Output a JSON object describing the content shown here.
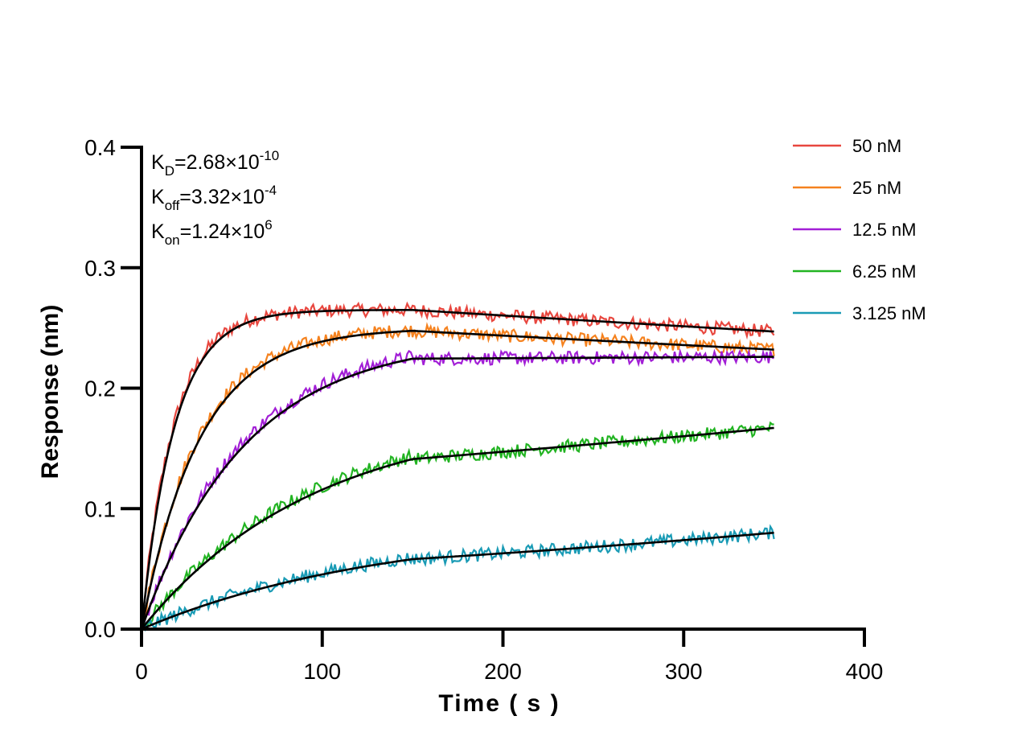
{
  "chart_data": {
    "type": "line",
    "xlabel": "Time ( s )",
    "ylabel": "Response (nm)",
    "xlim": [
      0,
      400
    ],
    "ylim": [
      0.0,
      0.4
    ],
    "xticks": [
      "0",
      "100",
      "200",
      "300",
      "400"
    ],
    "yticks": [
      "0.0",
      "0.1",
      "0.2",
      "0.3",
      "0.4"
    ],
    "grid": false,
    "legend_position": "top-right",
    "association_end_s": 150,
    "end_time_s": 350,
    "fit_color": "#000000",
    "annotations": {
      "kd": {
        "base": "K",
        "sub": "D",
        "value": "=2.68×10",
        "exp": "-10"
      },
      "koff": {
        "base": "K",
        "sub": "off",
        "value": "=3.32×10",
        "exp": "-4"
      },
      "kon": {
        "base": "K",
        "sub": "on",
        "value": "=1.24×10",
        "exp": "6"
      }
    },
    "series": [
      {
        "name": "50 nM",
        "color": "#e8473f",
        "plateau": 0.265,
        "k_obs": 0.055,
        "end": 0.247
      },
      {
        "name": "25 nM",
        "color": "#f5821f",
        "plateau": 0.25,
        "k_obs": 0.031,
        "end": 0.232
      },
      {
        "name": "12.5 nM",
        "color": "#a21fd6",
        "plateau": 0.242,
        "k_obs": 0.0175,
        "end": 0.226
      },
      {
        "name": "6.25 nM",
        "color": "#22b422",
        "plateau": 0.178,
        "k_obs": 0.0105,
        "end": 0.167
      },
      {
        "name": "3.125 nM",
        "color": "#1a9bb5",
        "plateau": 0.086,
        "k_obs": 0.0075,
        "end": 0.08
      }
    ]
  }
}
